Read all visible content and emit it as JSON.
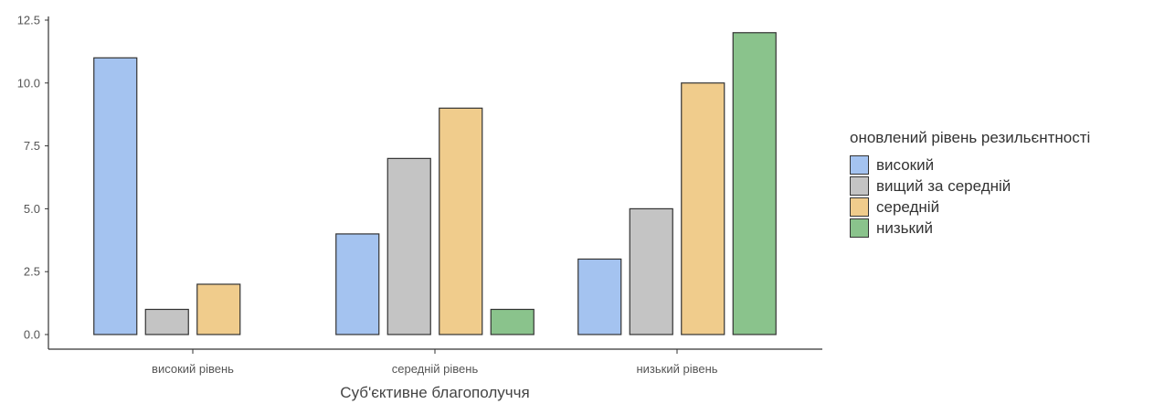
{
  "chart_data": {
    "type": "bar",
    "categories": [
      "високий рівень",
      "середній рівень",
      "низький рівень"
    ],
    "series": [
      {
        "name": "високий",
        "color": "#a4c3f0",
        "values": [
          11,
          4,
          3
        ]
      },
      {
        "name": "вищий за середній",
        "color": "#c4c4c4",
        "values": [
          1,
          7,
          5
        ]
      },
      {
        "name": "середній",
        "color": "#f0cc8c",
        "values": [
          2,
          9,
          10
        ]
      },
      {
        "name": "низький",
        "color": "#8ac38c",
        "values": [
          0,
          1,
          12
        ]
      }
    ],
    "xlabel": "Суб'єктивне благополуччя",
    "ylabel": "",
    "ylim": [
      0,
      12.5
    ],
    "yticks": [
      "0.0",
      "2.5",
      "5.0",
      "7.5",
      "10.0",
      "12.5"
    ],
    "legend_title": "оновлений рівень резильєнтності",
    "legend_position": "right",
    "grid": false
  }
}
